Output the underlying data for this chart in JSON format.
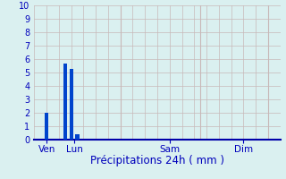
{
  "bar_positions": [
    2,
    5,
    6,
    7,
    8
  ],
  "bar_heights": [
    2.0,
    5.7,
    5.3,
    0.4,
    0.0
  ],
  "bar_color": "#0044cc",
  "bar_width": 0.6,
  "ylim": [
    0,
    10
  ],
  "yticks": [
    0,
    1,
    2,
    3,
    4,
    5,
    6,
    7,
    8,
    9,
    10
  ],
  "xtick_positions": [
    2,
    6.5,
    22,
    34
  ],
  "xtick_labels": [
    "Ven",
    "Lun",
    "Sam",
    "Dim"
  ],
  "xlabel": "Précipitations 24h ( mm )",
  "background_color": "#daf0f0",
  "grid_color": "#c8b8b8",
  "xlim": [
    0,
    40
  ],
  "xlabel_color": "#0000bb",
  "tick_color": "#0000bb",
  "axis_color": "#0000aa",
  "vline_positions": [
    14,
    27,
    38
  ],
  "xlabel_fontsize": 8.5,
  "ytick_fontsize": 7,
  "xtick_fontsize": 7.5,
  "figsize": [
    3.2,
    2.0
  ],
  "dpi": 100
}
